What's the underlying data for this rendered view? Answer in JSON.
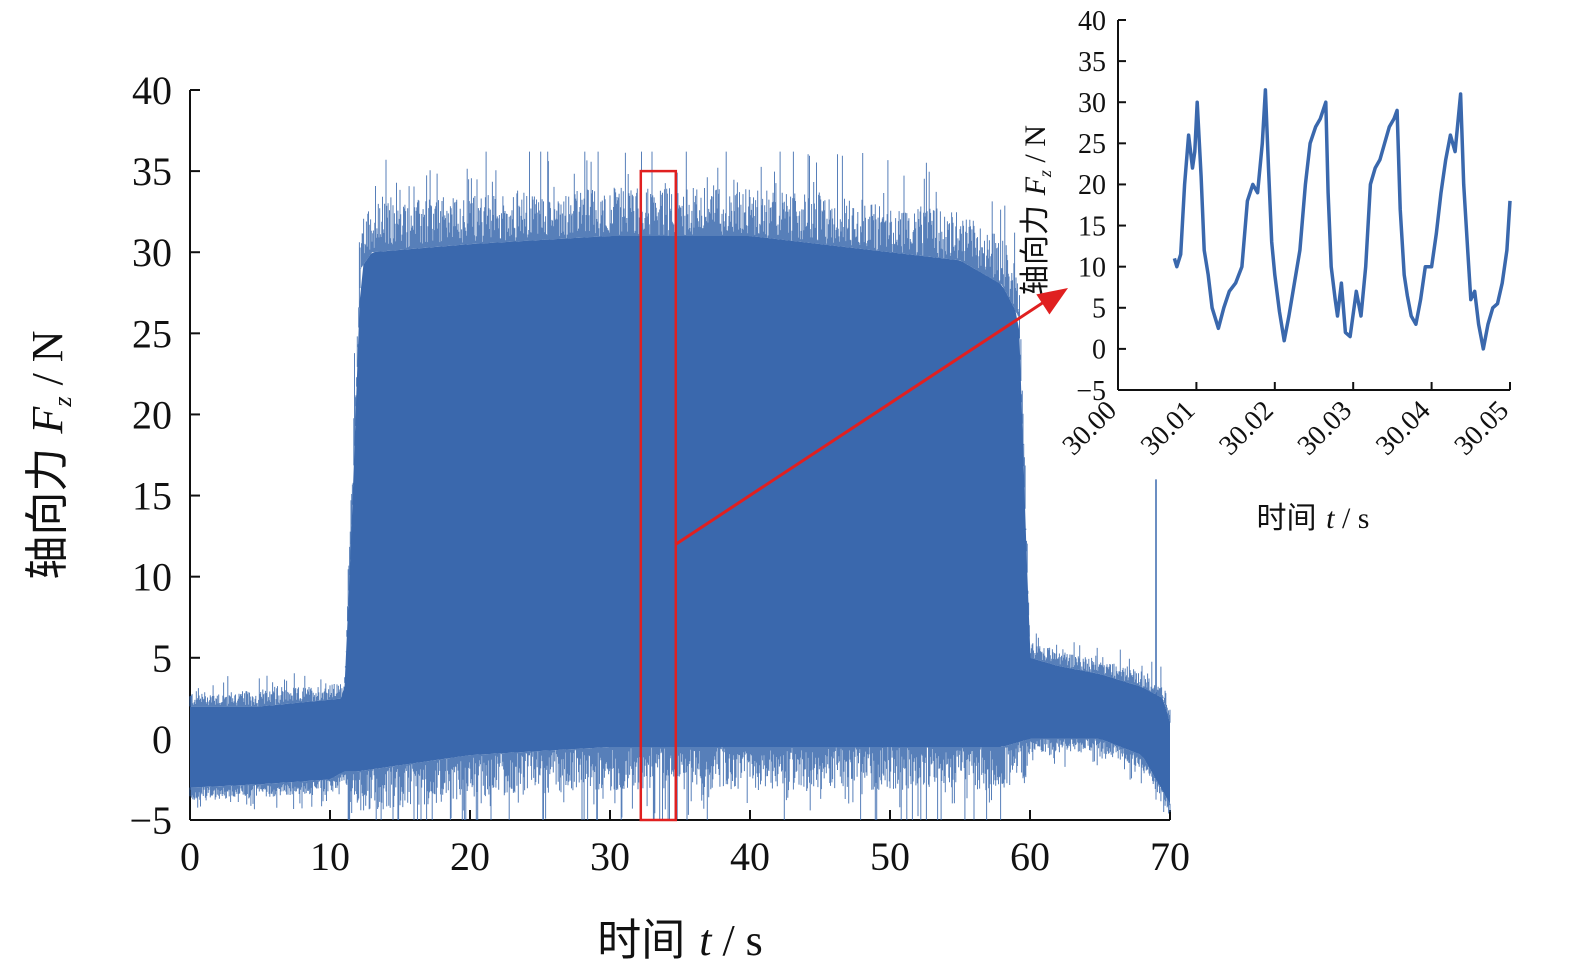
{
  "chart_data": [
    {
      "type": "line",
      "name": "main",
      "xlabel_cn": "时间",
      "xlabel_var": "t",
      "xlabel_unit": "/ s",
      "ylabel_cn": "轴向力",
      "ylabel_var": "F",
      "ylabel_sub": "z",
      "ylabel_unit": "/ N",
      "xlim": [
        0,
        70
      ],
      "ylim": [
        -5,
        40
      ],
      "xticks": [
        0,
        10,
        20,
        30,
        40,
        50,
        60,
        70
      ],
      "yticks": [
        -5,
        0,
        5,
        10,
        15,
        20,
        25,
        30,
        35,
        40
      ],
      "xtick_labels": [
        "0",
        "10",
        "20",
        "30",
        "40",
        "50",
        "60",
        "70"
      ],
      "ytick_labels": [
        "−5",
        "0",
        "5",
        "10",
        "15",
        "20",
        "25",
        "30",
        "35",
        "40"
      ],
      "grid": false,
      "series": [
        {
          "color": "#3a68ad",
          "upper_envelope": {
            "x": [
              0,
              5,
              11,
              11.5,
              12.2,
              13,
              20,
              30,
              40,
              50,
              55,
              58,
              59.2,
              60,
              62,
              65,
              68,
              69.5,
              70
            ],
            "y": [
              2,
              2,
              2.5,
              12,
              29,
              30,
              30.5,
              31,
              31,
              30,
              29.5,
              28,
              26,
              5,
              4.5,
              4,
              3.2,
              2.5,
              1
            ]
          },
          "lower_envelope": {
            "x": [
              0,
              5,
              10,
              11,
              12,
              20,
              30,
              40,
              50,
              58,
              60,
              65,
              68,
              69,
              70
            ],
            "y": [
              -3,
              -2.8,
              -2.5,
              -2,
              -2,
              -1,
              -0.5,
              -0.5,
              -0.5,
              -0.5,
              0,
              0,
              -1,
              -2.5,
              -4
            ]
          },
          "spike": {
            "x": 69,
            "y": 16
          }
        }
      ],
      "annotations": {
        "highlight_box": {
          "x": [
            32.2,
            34.7
          ],
          "y": [
            -5,
            35
          ]
        },
        "arrow": {
          "from": [
            34.7,
            12
          ],
          "to": "inset"
        }
      }
    },
    {
      "type": "line",
      "name": "inset",
      "xlabel_cn": "时间",
      "xlabel_var": "t",
      "xlabel_unit": "/ s",
      "ylabel_cn": "轴向力",
      "ylabel_var": "F",
      "ylabel_sub": "z",
      "ylabel_unit": "/ N",
      "xlim": [
        30.0,
        30.05
      ],
      "ylim": [
        -5,
        40
      ],
      "xticks": [
        30.0,
        30.01,
        30.02,
        30.03,
        30.04,
        30.05
      ],
      "yticks": [
        -5,
        0,
        5,
        10,
        15,
        20,
        25,
        30,
        35,
        40
      ],
      "xtick_labels": [
        "30.00",
        "30.01",
        "30.02",
        "30.03",
        "30.04",
        "30.05"
      ],
      "ytick_labels": [
        "−5",
        "0",
        "5",
        "10",
        "15",
        "20",
        "25",
        "30",
        "35",
        "40"
      ],
      "grid": false,
      "series": [
        {
          "color": "#3a68ad",
          "x": [
            30.0072,
            30.0075,
            30.008,
            30.0085,
            30.009,
            30.0095,
            30.0098,
            30.0101,
            30.0106,
            30.011,
            30.0115,
            30.012,
            30.0128,
            30.0135,
            30.0142,
            30.015,
            30.0158,
            30.0165,
            30.0172,
            30.0178,
            30.0184,
            30.0188,
            30.0192,
            30.0196,
            30.02,
            30.0206,
            30.0212,
            30.0218,
            30.0225,
            30.0232,
            30.0239,
            30.0245,
            30.0252,
            30.0258,
            30.0265,
            30.0268,
            30.0272,
            30.0277,
            30.028,
            30.0285,
            30.029,
            30.0296,
            30.0304,
            30.031,
            30.0316,
            30.0322,
            30.0328,
            30.0334,
            30.034,
            30.0346,
            30.0352,
            30.0356,
            30.036,
            30.0365,
            30.0369,
            30.0374,
            30.038,
            30.0386,
            30.0392,
            30.04,
            30.0406,
            30.0412,
            30.0418,
            30.0424,
            30.043,
            30.0437,
            30.0441,
            30.0446,
            30.045,
            30.0455,
            30.046,
            30.0466,
            30.0472,
            30.0478,
            30.0484,
            30.049,
            30.0496,
            30.05
          ],
          "y": [
            11,
            10,
            11.5,
            20,
            26,
            22,
            24,
            30,
            21,
            12,
            9,
            5,
            2.5,
            5,
            7,
            8,
            10,
            18,
            20,
            19,
            25,
            31.5,
            22,
            13,
            9,
            4.5,
            1,
            4,
            8,
            12,
            20,
            25,
            27,
            28,
            30,
            19,
            10,
            6,
            4,
            8,
            2,
            1.5,
            7,
            4,
            10,
            20,
            22,
            23,
            25,
            27,
            28,
            29,
            17,
            9,
            6.5,
            4,
            3,
            6,
            10,
            10,
            14,
            19,
            23,
            26,
            24,
            31,
            20,
            12,
            6,
            7,
            3,
            0,
            3,
            5,
            5.5,
            8,
            12,
            18
          ]
        }
      ]
    }
  ]
}
